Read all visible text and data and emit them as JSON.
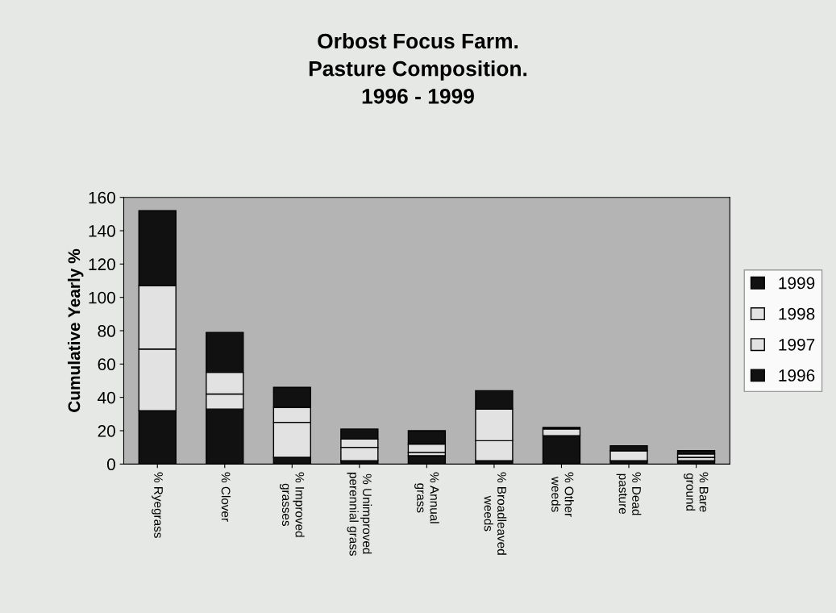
{
  "chart_data": {
    "type": "bar",
    "title": "Orbost Focus Farm.\nPasture Composition.\n1996 - 1999",
    "ylabel": "Cumulative Yearly %",
    "categories": [
      "% Ryegrass",
      "% Clover",
      "% Improved\ngrasses",
      "% Unimproved\nperennial grass",
      "% Annual\ngrass",
      "% Broadleaved\nweeds",
      "% Other\nweeds",
      "% Dead\npasture",
      "% Bare\nground"
    ],
    "stacked": true,
    "series": [
      {
        "name": "1996",
        "color": "#111111",
        "values": [
          32,
          33,
          4,
          2,
          5,
          2,
          17,
          2,
          2
        ]
      },
      {
        "name": "1997",
        "color": "#e2e2e2",
        "values": [
          37,
          9,
          21,
          8,
          2,
          12,
          0,
          6,
          2
        ]
      },
      {
        "name": "1998",
        "color": "#e2e2e2",
        "values": [
          38,
          13,
          9,
          5,
          5,
          19,
          4,
          0,
          2
        ]
      },
      {
        "name": "1999",
        "color": "#111111",
        "values": [
          45,
          24,
          12,
          6,
          8,
          11,
          1,
          3,
          2
        ]
      }
    ],
    "ylim": [
      0,
      160
    ],
    "yticks": [
      0,
      20,
      40,
      60,
      80,
      100,
      120,
      140,
      160
    ],
    "grid": false,
    "legend": "right"
  }
}
